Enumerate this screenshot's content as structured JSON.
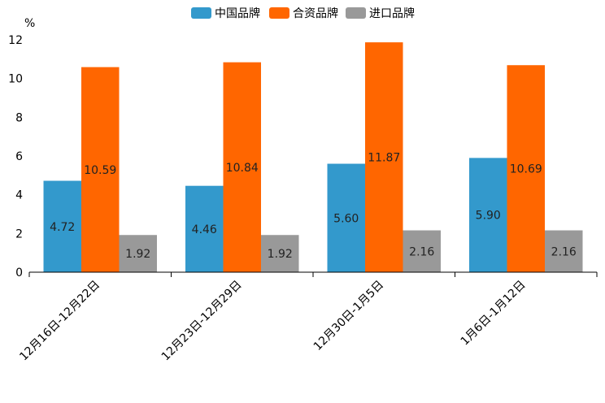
{
  "chart_data": {
    "type": "bar",
    "title": "",
    "xlabel": "",
    "ylabel": "%",
    "ylim": [
      0,
      12
    ],
    "yticks": [
      0,
      2,
      4,
      6,
      8,
      10,
      12
    ],
    "grid": false,
    "legend_position": "top-center",
    "categories": [
      "12月16日-12月22日",
      "12月23日-12月29日",
      "12月30日-1月5日",
      "1月6日-1月12日"
    ],
    "series": [
      {
        "name": "中国品牌",
        "color": "#3399cc",
        "values": [
          4.72,
          4.46,
          5.6,
          5.9
        ],
        "labels": [
          "4.72",
          "4.46",
          "5.60",
          "5.90"
        ]
      },
      {
        "name": "合资品牌",
        "color": "#ff6600",
        "values": [
          10.59,
          10.84,
          11.87,
          10.69
        ],
        "labels": [
          "10.59",
          "10.84",
          "11.87",
          "10.69"
        ]
      },
      {
        "name": "进口品牌",
        "color": "#999999",
        "values": [
          1.92,
          1.92,
          2.16,
          2.16
        ],
        "labels": [
          "1.92",
          "1.92",
          "2.16",
          "2.16"
        ]
      }
    ]
  }
}
